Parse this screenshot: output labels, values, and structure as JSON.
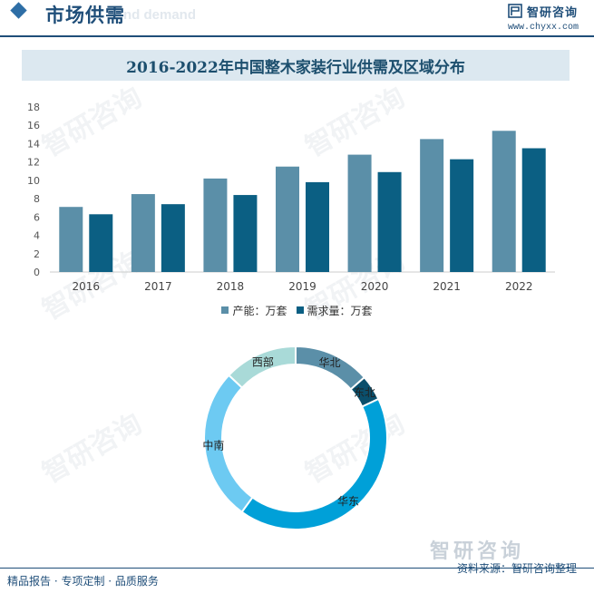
{
  "header": {
    "title": "市场供需",
    "ghost_text": "nd demand",
    "brand_name": "智研咨询",
    "brand_url": "www.chyxx.com"
  },
  "watermark_text": "智研咨询",
  "chart_data": [
    {
      "type": "bar",
      "title": "2016-2022年中国整木家装行业供需及区域分布",
      "categories": [
        "2016",
        "2017",
        "2018",
        "2019",
        "2020",
        "2021",
        "2022"
      ],
      "series": [
        {
          "name": "产能：万套",
          "values": [
            7.1,
            8.5,
            10.2,
            11.5,
            12.8,
            14.5,
            15.4
          ],
          "color": "#5b8fa8"
        },
        {
          "name": "需求量：万套",
          "values": [
            6.3,
            7.4,
            8.4,
            9.8,
            10.9,
            12.3,
            13.5
          ],
          "color": "#0b5f83"
        }
      ],
      "yticks": [
        0,
        2,
        4,
        6,
        8,
        10,
        12,
        14,
        16,
        18
      ],
      "ylim": [
        0,
        18
      ],
      "legend": "bottom"
    },
    {
      "type": "pie",
      "style": "donut",
      "labels": [
        "华北",
        "东北",
        "华东",
        "中南",
        "西部"
      ],
      "values": [
        13.5,
        4.5,
        42,
        27,
        13
      ],
      "colors": [
        "#5b8fa8",
        "#0b4f6c",
        "#00a0d8",
        "#6dcaf2",
        "#a9dad8"
      ]
    }
  ],
  "footer": {
    "left": "精品报告 · 专项定制 · 品质服务",
    "right": "资料来源：智研咨询整理",
    "logo": "智研咨询"
  }
}
